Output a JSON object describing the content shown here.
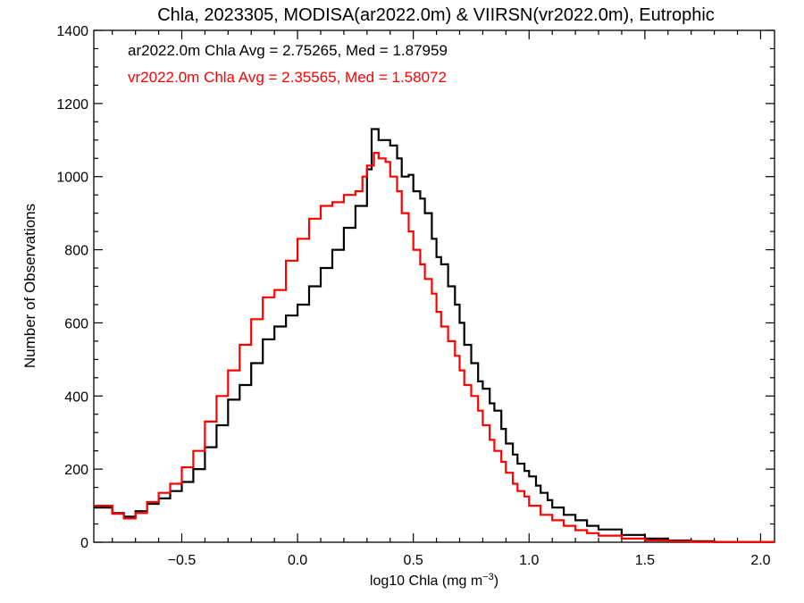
{
  "chart_data": {
    "type": "line",
    "title": "Chla, 2023305, MODISA(ar2022.0m) & VIIRSN(vr2022.0m), Eutrophic",
    "xlabel": "log10 Chla (mg m",
    "xlabel_sup": "−3",
    "xlabel_close": ")",
    "ylabel": "Number of Observations",
    "xlim": [
      -0.88,
      2.06
    ],
    "ylim": [
      0,
      1400
    ],
    "x_ticks": [
      -0.5,
      0.0,
      0.5,
      1.0,
      1.5,
      2.0
    ],
    "x_tick_labels": [
      "−0.5",
      "0.0",
      "0.5",
      "1.0",
      "1.5",
      "2.0"
    ],
    "y_ticks": [
      0,
      200,
      400,
      600,
      800,
      1000,
      1200,
      1400
    ],
    "y_tick_labels": [
      "0",
      "200",
      "400",
      "600",
      "800",
      "1000",
      "1200",
      "1400"
    ],
    "legend_position": "top-left",
    "series": [
      {
        "name": "ar2022.0m",
        "legend_text": "ar2022.0m Chla Avg = 2.75265, Med = 1.87959",
        "color": "#000000",
        "style": "step",
        "points": [
          [
            -0.88,
            95
          ],
          [
            -0.8,
            80
          ],
          [
            -0.75,
            70
          ],
          [
            -0.7,
            85
          ],
          [
            -0.65,
            105
          ],
          [
            -0.6,
            120
          ],
          [
            -0.55,
            140
          ],
          [
            -0.5,
            165
          ],
          [
            -0.45,
            200
          ],
          [
            -0.4,
            260
          ],
          [
            -0.35,
            320
          ],
          [
            -0.3,
            390
          ],
          [
            -0.25,
            430
          ],
          [
            -0.2,
            490
          ],
          [
            -0.15,
            555
          ],
          [
            -0.1,
            590
          ],
          [
            -0.05,
            620
          ],
          [
            0.0,
            650
          ],
          [
            0.05,
            700
          ],
          [
            0.1,
            750
          ],
          [
            0.15,
            800
          ],
          [
            0.2,
            860
          ],
          [
            0.25,
            920
          ],
          [
            0.3,
            1020
          ],
          [
            0.32,
            1130
          ],
          [
            0.35,
            1100
          ],
          [
            0.4,
            1085
          ],
          [
            0.43,
            1050
          ],
          [
            0.45,
            1000
          ],
          [
            0.48,
            1005
          ],
          [
            0.5,
            960
          ],
          [
            0.53,
            940
          ],
          [
            0.55,
            900
          ],
          [
            0.58,
            830
          ],
          [
            0.6,
            780
          ],
          [
            0.62,
            760
          ],
          [
            0.65,
            700
          ],
          [
            0.68,
            650
          ],
          [
            0.7,
            600
          ],
          [
            0.72,
            540
          ],
          [
            0.75,
            490
          ],
          [
            0.78,
            440
          ],
          [
            0.8,
            420
          ],
          [
            0.83,
            380
          ],
          [
            0.85,
            360
          ],
          [
            0.88,
            310
          ],
          [
            0.9,
            270
          ],
          [
            0.93,
            240
          ],
          [
            0.95,
            215
          ],
          [
            0.98,
            195
          ],
          [
            1.0,
            180
          ],
          [
            1.03,
            155
          ],
          [
            1.05,
            135
          ],
          [
            1.08,
            115
          ],
          [
            1.1,
            95
          ],
          [
            1.15,
            75
          ],
          [
            1.2,
            60
          ],
          [
            1.25,
            45
          ],
          [
            1.3,
            35
          ],
          [
            1.4,
            20
          ],
          [
            1.5,
            10
          ],
          [
            1.6,
            5
          ],
          [
            1.7,
            3
          ],
          [
            1.8,
            1
          ],
          [
            2.06,
            0
          ]
        ]
      },
      {
        "name": "vr2022.0m",
        "legend_text": "vr2022.0m Chla Avg = 2.35565, Med = 1.58072",
        "color": "#ff0000",
        "style": "step",
        "points": [
          [
            -0.88,
            100
          ],
          [
            -0.8,
            78
          ],
          [
            -0.75,
            65
          ],
          [
            -0.7,
            80
          ],
          [
            -0.65,
            110
          ],
          [
            -0.6,
            135
          ],
          [
            -0.55,
            160
          ],
          [
            -0.5,
            205
          ],
          [
            -0.45,
            250
          ],
          [
            -0.4,
            330
          ],
          [
            -0.35,
            400
          ],
          [
            -0.3,
            470
          ],
          [
            -0.25,
            540
          ],
          [
            -0.2,
            610
          ],
          [
            -0.15,
            670
          ],
          [
            -0.1,
            690
          ],
          [
            -0.05,
            770
          ],
          [
            0.0,
            830
          ],
          [
            0.05,
            885
          ],
          [
            0.1,
            920
          ],
          [
            0.15,
            930
          ],
          [
            0.2,
            950
          ],
          [
            0.25,
            960
          ],
          [
            0.28,
            1000
          ],
          [
            0.3,
            1030
          ],
          [
            0.33,
            1065
          ],
          [
            0.35,
            1050
          ],
          [
            0.38,
            1040
          ],
          [
            0.4,
            1000
          ],
          [
            0.43,
            960
          ],
          [
            0.45,
            900
          ],
          [
            0.48,
            850
          ],
          [
            0.5,
            800
          ],
          [
            0.53,
            760
          ],
          [
            0.55,
            720
          ],
          [
            0.58,
            680
          ],
          [
            0.6,
            630
          ],
          [
            0.62,
            590
          ],
          [
            0.65,
            550
          ],
          [
            0.68,
            510
          ],
          [
            0.7,
            470
          ],
          [
            0.72,
            430
          ],
          [
            0.75,
            400
          ],
          [
            0.78,
            360
          ],
          [
            0.8,
            320
          ],
          [
            0.83,
            280
          ],
          [
            0.85,
            250
          ],
          [
            0.88,
            220
          ],
          [
            0.9,
            190
          ],
          [
            0.93,
            160
          ],
          [
            0.95,
            140
          ],
          [
            0.98,
            125
          ],
          [
            1.0,
            100
          ],
          [
            1.05,
            75
          ],
          [
            1.1,
            60
          ],
          [
            1.15,
            45
          ],
          [
            1.2,
            33
          ],
          [
            1.25,
            25
          ],
          [
            1.3,
            18
          ],
          [
            1.4,
            10
          ],
          [
            1.5,
            5
          ],
          [
            1.6,
            3
          ],
          [
            1.7,
            1
          ],
          [
            2.06,
            0
          ]
        ]
      }
    ]
  }
}
